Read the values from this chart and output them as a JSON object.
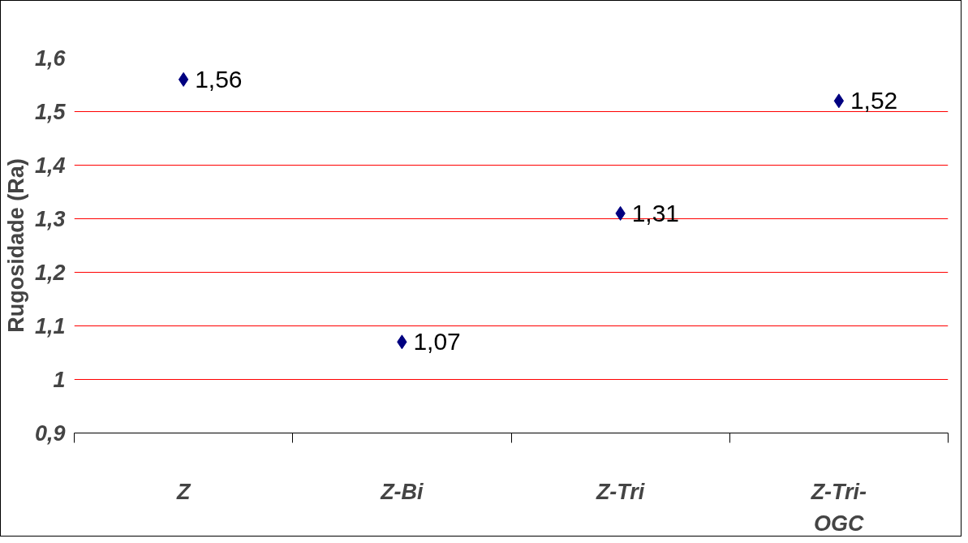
{
  "chart_data": {
    "type": "scatter",
    "ylabel": "Rugosidade (Ra)",
    "categories": [
      "Z",
      "Z-Bi",
      "Z-Tri",
      "Z-Tri-OGC"
    ],
    "series": [
      {
        "color": "#000080",
        "values": [
          1.56,
          1.07,
          1.31,
          1.52
        ],
        "value_labels": [
          "1,56",
          "1,07",
          "1,31",
          "1,52"
        ]
      }
    ],
    "ylim": [
      0.9,
      1.6
    ],
    "yticks": [
      {
        "value": 0.9,
        "label": "0,9"
      },
      {
        "value": 1.0,
        "label": "1"
      },
      {
        "value": 1.1,
        "label": "1,1"
      },
      {
        "value": 1.2,
        "label": "1,2"
      },
      {
        "value": 1.3,
        "label": "1,3"
      },
      {
        "value": 1.4,
        "label": "1,4"
      },
      {
        "value": 1.5,
        "label": "1,5"
      },
      {
        "value": 1.6,
        "label": "1,6"
      }
    ],
    "grid": "y",
    "marker": "diamond"
  }
}
